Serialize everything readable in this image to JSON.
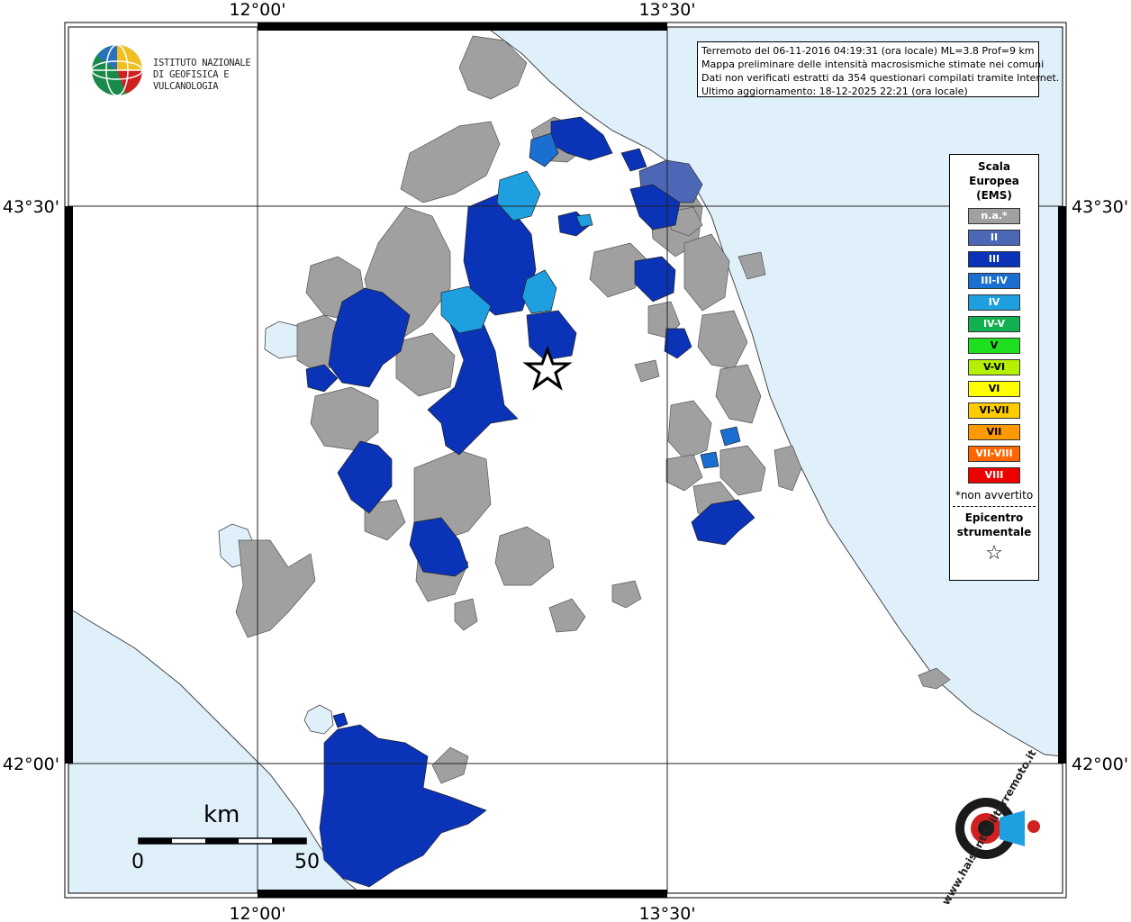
{
  "map": {
    "lon_labels_top": [
      "12°00'",
      "13°30'"
    ],
    "lon_labels_bottom": [
      "12°00'",
      "13°30'"
    ],
    "lat_labels_left": [
      "43°30'",
      "42°00'"
    ],
    "lat_labels_right": [
      "43°30'",
      "42°00'"
    ],
    "colors": {
      "sea": "#dff0fb",
      "land": "#ffffff",
      "na": "#a0a0a0",
      "II": "#4c67b6",
      "III": "#0a33b8",
      "III-IV": "#1a6fd0",
      "IV": "#1ea0e0"
    }
  },
  "logo": {
    "line1": "ISTITUTO NAZIONALE",
    "line2": "DI GEOFISICA E VULCANOLOGIA"
  },
  "info": {
    "line1": "Terremoto del 06-11-2016 04:19:31 (ora locale) ML=3.8 Prof=9 km",
    "line2": "Mappa preliminare delle intensità macrosismiche stimate nei comuni",
    "line3": "Dati non verificati estratti da 354 questionari compilati tramite Internet.",
    "line4": "Ultimo aggiornamento: 18-12-2025 22:21 (ora locale)"
  },
  "legend": {
    "title_1": "Scala",
    "title_2": "Europea",
    "title_3": "(EMS)",
    "items": [
      {
        "label": "n.a.*",
        "color": "#a0a0a0"
      },
      {
        "label": "II",
        "color": "#4c67b6"
      },
      {
        "label": "III",
        "color": "#0a33b8"
      },
      {
        "label": "III-IV",
        "color": "#1a6fd0"
      },
      {
        "label": "IV",
        "color": "#1ea0e0"
      },
      {
        "label": "IV-V",
        "color": "#12b050"
      },
      {
        "label": "V",
        "color": "#1fe01f"
      },
      {
        "label": "V-VI",
        "color": "#b4f000"
      },
      {
        "label": "VI",
        "color": "#ffff00"
      },
      {
        "label": "VI-VII",
        "color": "#ffcc00"
      },
      {
        "label": "VII",
        "color": "#ff9900"
      },
      {
        "label": "VII-VIII",
        "color": "#ff6600"
      },
      {
        "label": "VIII",
        "color": "#ee0000"
      }
    ],
    "note": "*non avvertito",
    "epicenter_1": "Epicentro",
    "epicenter_2": "strumentale",
    "epicenter_symbol": "☆"
  },
  "scalebar": {
    "unit": "km",
    "start": "0",
    "end": "50"
  },
  "watermark": {
    "text": "www.haisentitoilterremoto.it"
  }
}
